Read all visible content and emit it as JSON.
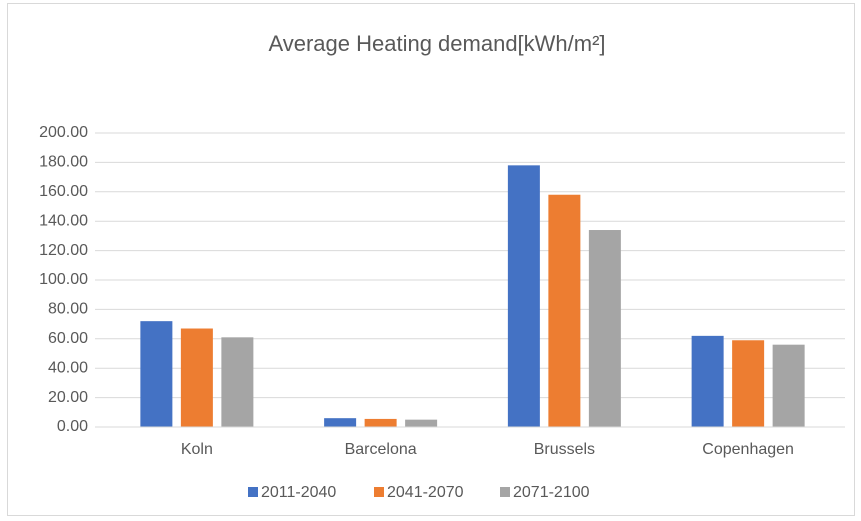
{
  "chart_data": {
    "type": "bar",
    "title": "Average Heating demand[kWh/m²]",
    "categories": [
      "Koln",
      "Barcelona",
      "Brussels",
      "Copenhagen"
    ],
    "series": [
      {
        "name": "2011-2040",
        "color": "#4472c4",
        "values": [
          72,
          6,
          178,
          62
        ]
      },
      {
        "name": "2041-2070",
        "color": "#ed7d31",
        "values": [
          67,
          5.5,
          158,
          59
        ]
      },
      {
        "name": "2071-2100",
        "color": "#a5a5a5",
        "values": [
          61,
          5,
          134,
          56
        ]
      }
    ],
    "ylim": [
      0,
      200
    ],
    "yticks": [
      {
        "value": 0,
        "label": "0.00"
      },
      {
        "value": 20,
        "label": "20.00"
      },
      {
        "value": 40,
        "label": "40.00"
      },
      {
        "value": 60,
        "label": "60.00"
      },
      {
        "value": 80,
        "label": "80.00"
      },
      {
        "value": 100,
        "label": "100.00"
      },
      {
        "value": 120,
        "label": "120.00"
      },
      {
        "value": 140,
        "label": "140.00"
      },
      {
        "value": 160,
        "label": "160.00"
      },
      {
        "value": 180,
        "label": "180.00"
      },
      {
        "value": 200,
        "label": "200.00"
      }
    ],
    "grid": true,
    "legend": "bottom"
  }
}
